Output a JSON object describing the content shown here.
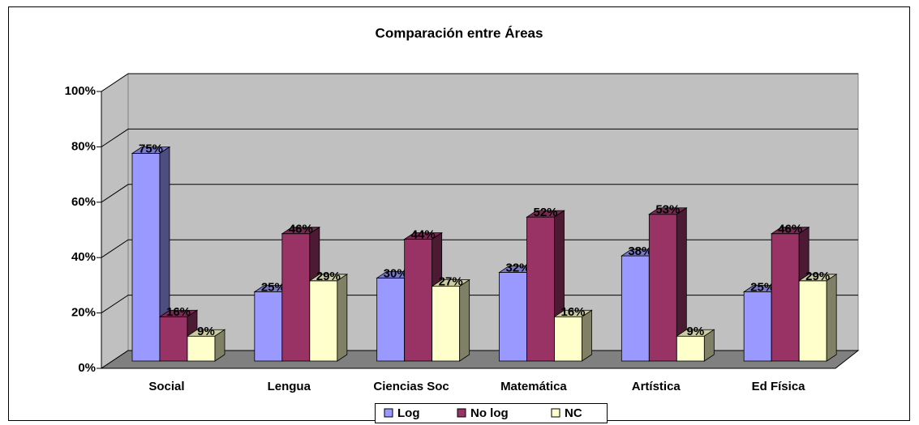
{
  "chart_data": {
    "type": "bar3d",
    "title": "Comparación entre Áreas",
    "categories": [
      "Social",
      "Lengua",
      "Ciencias Soc",
      "Matemática",
      "Artística",
      "Ed Física"
    ],
    "series": [
      {
        "name": "Log",
        "color": "#9999ff",
        "values": [
          75,
          25,
          30,
          32,
          38,
          25
        ],
        "value_labels": [
          "75%",
          "25%",
          "30%",
          "32%",
          "38%",
          "25%"
        ]
      },
      {
        "name": "No log",
        "color": "#993366",
        "values": [
          16,
          46,
          44,
          52,
          53,
          46
        ],
        "value_labels": [
          "16%",
          "46%",
          "44%",
          "52%",
          "53%",
          "46%"
        ]
      },
      {
        "name": "NC",
        "color": "#ffffcc",
        "values": [
          9,
          29,
          27,
          16,
          9,
          29
        ],
        "value_labels": [
          "9%",
          "29%",
          "27%",
          "16%",
          "9%",
          "29%"
        ]
      }
    ],
    "ylim": [
      0,
      100
    ],
    "yticks": [
      {
        "value": 0,
        "label": "0%"
      },
      {
        "value": 20,
        "label": "20%"
      },
      {
        "value": 40,
        "label": "40%"
      },
      {
        "value": 60,
        "label": "60%"
      },
      {
        "value": 80,
        "label": "80%"
      },
      {
        "value": 100,
        "label": "100%"
      }
    ],
    "grid": true,
    "legend": "bottom"
  }
}
